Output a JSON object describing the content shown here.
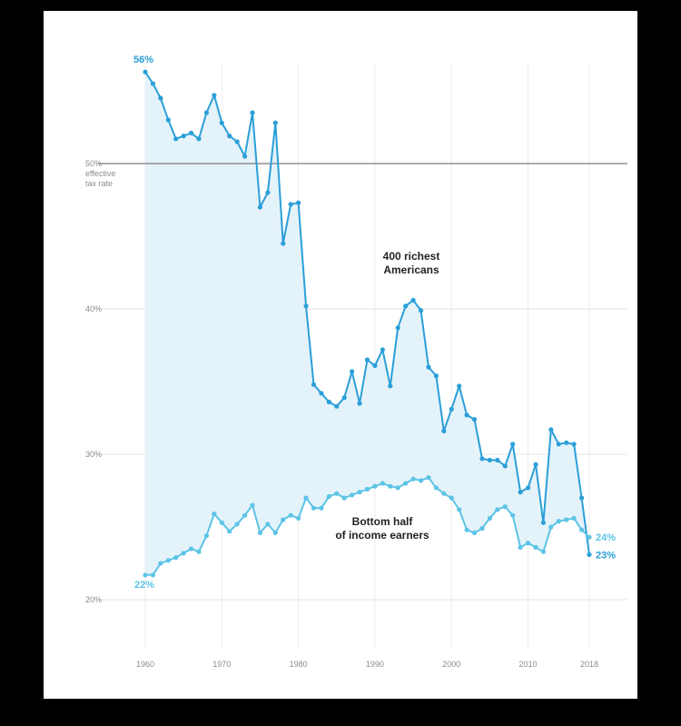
{
  "chart_data": {
    "type": "line",
    "title": "",
    "xlabel": "",
    "ylabel": "effective tax rate",
    "xlim": [
      1960,
      2018
    ],
    "ylim": [
      16,
      58
    ],
    "x_ticks": [
      "1960",
      "1970",
      "1980",
      "1990",
      "2000",
      "2010",
      "2018"
    ],
    "y_ticks": [
      {
        "value": 20,
        "label": "20%"
      },
      {
        "value": 30,
        "label": "30%"
      },
      {
        "value": 40,
        "label": "40%"
      },
      {
        "value": 50,
        "label": "50%"
      }
    ],
    "y_axis_note": [
      "effective",
      "tax rate"
    ],
    "reference_line": 50,
    "area_between_series": true,
    "series": [
      {
        "name": "400 richest Americans",
        "label_lines": [
          "400 richest",
          "Americans"
        ],
        "color": "#2a9fd8",
        "x": [
          1960,
          1961,
          1962,
          1963,
          1964,
          1965,
          1966,
          1967,
          1968,
          1969,
          1970,
          1971,
          1972,
          1973,
          1974,
          1975,
          1976,
          1977,
          1978,
          1979,
          1980,
          1981,
          1982,
          1983,
          1984,
          1985,
          1986,
          1987,
          1988,
          1989,
          1990,
          1991,
          1992,
          1993,
          1994,
          1995,
          1996,
          1997,
          1998,
          1999,
          2000,
          2001,
          2002,
          2003,
          2004,
          2005,
          2006,
          2007,
          2008,
          2009,
          2010,
          2011,
          2012,
          2013,
          2014,
          2015,
          2016,
          2017,
          2018
        ],
        "values": [
          56.3,
          55.5,
          54.5,
          53.0,
          51.7,
          51.9,
          52.1,
          51.7,
          53.5,
          54.7,
          52.8,
          51.9,
          51.5,
          50.5,
          53.5,
          47.0,
          48.0,
          52.8,
          44.5,
          47.2,
          47.3,
          40.2,
          34.8,
          34.2,
          33.6,
          33.3,
          33.9,
          35.7,
          33.5,
          36.5,
          36.1,
          37.2,
          34.7,
          38.7,
          40.2,
          40.6,
          39.9,
          36.0,
          35.4,
          31.6,
          33.1,
          34.7,
          32.7,
          32.4,
          29.7,
          29.6,
          29.6,
          29.2,
          30.7,
          27.4,
          27.7,
          29.3,
          25.3,
          31.7,
          30.7,
          30.8,
          30.7,
          27.0,
          23.1
        ]
      },
      {
        "name": "Bottom half of income earners",
        "label_lines": [
          "Bottom half",
          "of income earners"
        ],
        "color": "#5cc4e6",
        "x": [
          1960,
          1961,
          1962,
          1963,
          1964,
          1965,
          1966,
          1967,
          1968,
          1969,
          1970,
          1971,
          1972,
          1973,
          1974,
          1975,
          1976,
          1977,
          1978,
          1979,
          1980,
          1981,
          1982,
          1983,
          1984,
          1985,
          1986,
          1987,
          1988,
          1989,
          1990,
          1991,
          1992,
          1993,
          1994,
          1995,
          1996,
          1997,
          1998,
          1999,
          2000,
          2001,
          2002,
          2003,
          2004,
          2005,
          2006,
          2007,
          2008,
          2009,
          2010,
          2011,
          2012,
          2013,
          2014,
          2015,
          2016,
          2017,
          2018
        ],
        "values": [
          21.7,
          21.7,
          22.5,
          22.7,
          22.9,
          23.2,
          23.5,
          23.3,
          24.4,
          25.9,
          25.3,
          24.7,
          25.2,
          25.8,
          26.5,
          24.6,
          25.2,
          24.6,
          25.5,
          25.8,
          25.6,
          27.0,
          26.3,
          26.3,
          27.1,
          27.3,
          27.0,
          27.2,
          27.4,
          27.6,
          27.8,
          28.0,
          27.8,
          27.7,
          28.0,
          28.3,
          28.2,
          28.4,
          27.7,
          27.3,
          27.0,
          26.2,
          24.8,
          24.6,
          24.9,
          25.6,
          26.2,
          26.4,
          25.8,
          23.6,
          23.9,
          23.6,
          23.3,
          25.0,
          25.4,
          25.5,
          25.6,
          24.8,
          24.3
        ]
      }
    ],
    "endpoint_labels": [
      {
        "series": "400 richest Americans",
        "x": 1960,
        "label": "56%"
      },
      {
        "series": "Bottom half of income earners",
        "x": 1960,
        "label": "22%"
      },
      {
        "series": "Bottom half of income earners",
        "x": 2018,
        "label": "24%"
      },
      {
        "series": "400 richest Americans",
        "x": 2018,
        "label": "23%"
      }
    ]
  }
}
